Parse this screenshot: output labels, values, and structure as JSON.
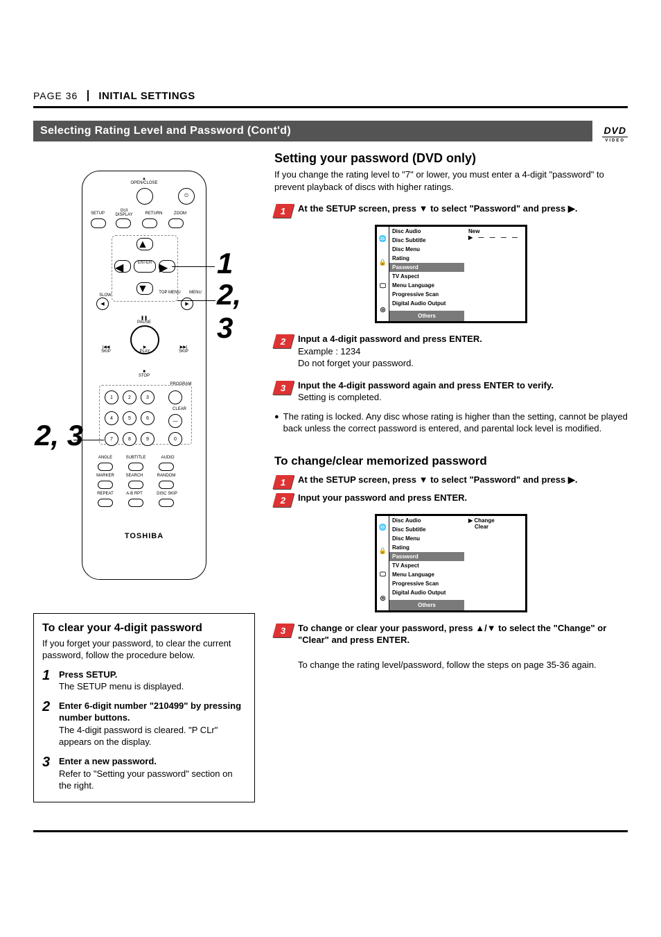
{
  "page_label": "PAGE 36",
  "chapter": "INITIAL SETTINGS",
  "section_title": "Selecting Rating Level and Password  (Cont'd)",
  "dvd_logo": "DVD",
  "remote": {
    "brand": "TOSHIBA",
    "open_close": "OPEN/CLOSE",
    "setup": "SETUP",
    "gui_display": "GUI DISPLAY",
    "return": "RETURN",
    "zoom": "ZOOM",
    "enter": "ENTER",
    "slow": "SLOW",
    "top_menu": "TOP MENU",
    "menu": "MENU",
    "pause": "PAUSE",
    "skip_l": "SKIP",
    "play": "PLAY",
    "skip_r": "SKIP",
    "stop": "STOP",
    "program": "PROGRAM",
    "clear": "CLEAR",
    "angle": "ANGLE",
    "subtitle": "SUBTITLE",
    "audio": "AUDIO",
    "marker": "MARKER",
    "search": "SEARCH",
    "random": "RANDOM",
    "repeat": "REPEAT",
    "ab_rpt": "A-B RPT",
    "disc_skip": "DISC SKIP"
  },
  "callouts": {
    "c1": "1",
    "c23": "2, 3"
  },
  "setting": {
    "heading": "Setting your password (DVD only)",
    "intro": "If you change the rating level to \"7\" or lower, you must enter a 4-digit \"password\" to prevent playback of discs with higher ratings.",
    "step1": "At the SETUP screen,  press ▼ to select \"Password\" and press ▶.",
    "step2_title": "Input a 4-digit password and press ENTER.",
    "step2_ex": "Example : 1234",
    "step2_note": "Do not forget your password.",
    "step3_title": "Input the 4-digit password again and press ENTER to verify.",
    "step3_body": "Setting is completed.",
    "bullet": "The rating is locked. Any disc whose rating is higher than the setting, cannot be played back unless the correct password is entered, and parental lock level is modified."
  },
  "menu1": {
    "items": [
      "Disc Audio",
      "Disc Subtitle",
      "Disc Menu",
      "Rating",
      "Password",
      "TV Aspect",
      "Menu Language",
      "Progressive Scan",
      "Digital Audio Output"
    ],
    "highlight": "Password",
    "others": "Others",
    "right_label": "New",
    "right_value": "▶ — — — —"
  },
  "change": {
    "heading": "To change/clear memorized password",
    "step1": "At the SETUP screen,  press ▼ to select \"Password\" and press ▶.",
    "step2": "Input your password and press ENTER.",
    "step3": "To change or clear your password, press ▲/▼ to select the \"Change\" or \"Clear\" and press ENTER.",
    "after": "To change the rating level/password, follow the steps on page 35-36 again."
  },
  "menu2": {
    "items": [
      "Disc Audio",
      "Disc Subtitle",
      "Disc Menu",
      "Rating",
      "Password",
      "TV Aspect",
      "Menu Language",
      "Progressive Scan",
      "Digital Audio Output"
    ],
    "highlight": "Password",
    "others": "Others",
    "right_a": "▶ Change",
    "right_b": "Clear"
  },
  "clear": {
    "title": "To clear your 4-digit password",
    "intro": "If you forget your password, to clear the current password, follow the procedure below.",
    "s1_t": "Press SETUP.",
    "s1_b": "The SETUP menu is displayed.",
    "s2_t": "Enter 6-digit number \"210499\" by pressing number buttons.",
    "s2_b": "The 4-digit password is cleared. \"P CLr\" appears on the display.",
    "s3_t": "Enter a new password.",
    "s3_b": "Refer to \"Setting your password\" section on the right."
  }
}
